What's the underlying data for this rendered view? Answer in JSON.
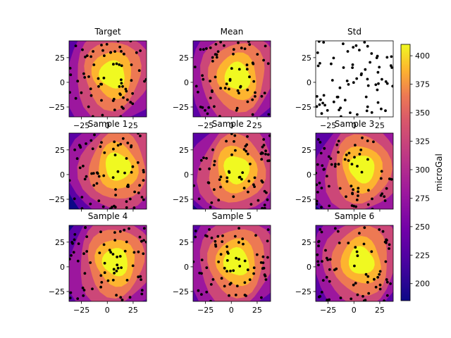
{
  "panels": [
    {
      "title": "Target",
      "kind": "contour",
      "center": [
        5,
        8
      ],
      "has_x_ticks": true,
      "has_y_ticks": true
    },
    {
      "title": "Mean",
      "kind": "contour",
      "center": [
        6,
        6
      ],
      "has_x_ticks": true,
      "has_y_ticks": true
    },
    {
      "title": "Std",
      "kind": "blank",
      "has_x_ticks": true,
      "has_y_ticks": true
    },
    {
      "title": "Sample 1",
      "kind": "contour",
      "center": [
        10,
        8
      ],
      "has_x_ticks": false,
      "has_y_ticks": true
    },
    {
      "title": "Sample 2",
      "kind": "contour",
      "center": [
        5,
        5
      ],
      "has_x_ticks": false,
      "has_y_ticks": true
    },
    {
      "title": "Sample 3",
      "kind": "contour",
      "center": [
        8,
        6
      ],
      "has_x_ticks": false,
      "has_y_ticks": true
    },
    {
      "title": "Sample 4",
      "kind": "contour",
      "center": [
        8,
        5
      ],
      "has_x_ticks": true,
      "has_y_ticks": true
    },
    {
      "title": "Sample 5",
      "kind": "contour",
      "center": [
        5,
        5
      ],
      "has_x_ticks": true,
      "has_y_ticks": true
    },
    {
      "title": "Sample 6",
      "kind": "contour",
      "center": [
        7,
        6
      ],
      "has_x_ticks": true,
      "has_y_ticks": true
    }
  ],
  "colorbar": {
    "label": "microGal",
    "ticks": [
      "200",
      "225",
      "250",
      "275",
      "300",
      "325",
      "350",
      "375",
      "400"
    ],
    "range": [
      185,
      410
    ]
  },
  "colors": {
    "contour_levels": [
      "#0d0887",
      "#5c01a6",
      "#9c179e",
      "#cc4778",
      "#ed7953",
      "#fdb42f",
      "#f0f921"
    ],
    "points": "#000000"
  },
  "chart_data": {
    "type": "heatmap",
    "x_ticks": [
      "−25",
      "0",
      "25"
    ],
    "y_ticks": [
      "25",
      "0",
      "−25"
    ],
    "xlim": [
      -37,
      38
    ],
    "ylim": [
      -35,
      42
    ],
    "colorbar_label": "microGal",
    "colorbar_ticks": [
      200,
      225,
      250,
      275,
      300,
      325,
      350,
      375,
      400
    ],
    "colorbar_range": [
      185,
      410
    ],
    "panel_titles": [
      "Target",
      "Mean",
      "Std",
      "Sample 1",
      "Sample 2",
      "Sample 3",
      "Sample 4",
      "Sample 5",
      "Sample 6"
    ],
    "field": {
      "peak_value": 400,
      "edge_value": 190,
      "description_units": "microGal"
    }
  }
}
